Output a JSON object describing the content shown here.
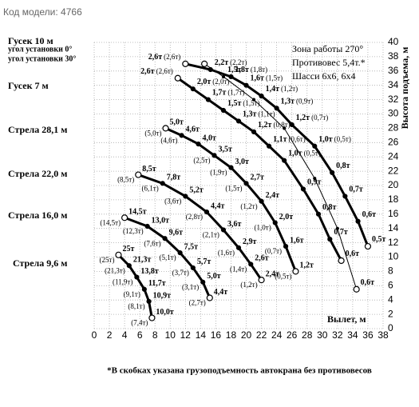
{
  "model_code": "Код модели: 4766",
  "chart_data": {
    "type": "line",
    "info": [
      "Зона работы 270°",
      "Противовес 5,4т.*",
      "Шасси 6х6, 6х4"
    ],
    "angle_labels": [
      "угол установки 0°",
      "угол установки 30°"
    ],
    "xlabel": "Вылет, м",
    "ylabel": "Высота подъема, м",
    "note": "*В скобках указана грузоподъемность автокрана без противовесов",
    "xlim": [
      0,
      38
    ],
    "ylim": [
      0,
      40
    ],
    "xticks": [
      0,
      2,
      4,
      6,
      8,
      10,
      12,
      14,
      16,
      18,
      20,
      22,
      24,
      26,
      28,
      30,
      32,
      34,
      36,
      38
    ],
    "yticks": [
      0,
      2,
      4,
      6,
      8,
      10,
      12,
      14,
      16,
      18,
      20,
      22,
      24,
      26,
      28,
      30,
      32,
      34,
      36,
      38,
      40
    ],
    "grid": true,
    "color": "#000000",
    "series": [
      {
        "name": "Гусек 10 м",
        "style": "thick",
        "x": [
          12,
          15.3,
          18,
          20,
          22,
          24,
          26,
          29,
          31.3,
          33,
          34.7,
          36
        ],
        "values": [
          37,
          36.2,
          35.2,
          34,
          32.5,
          30.8,
          28.5,
          25.5,
          21.8,
          18.5,
          15,
          11.5
        ],
        "loads": [
          "2,6т",
          "2,2т",
          "1,8т",
          "1,6т",
          "1,4т",
          "1,3т",
          "1,2т",
          "1,0т",
          "0,8т",
          "0,7т",
          "0,6т",
          "0,5т"
        ],
        "loads_alt": [
          "(2,6т)",
          "(2,2т)",
          "(1,8т)",
          "(1,5т)",
          "(1,2т)",
          "(0,9т)",
          "(0,7т)",
          "(0,5т)",
          null,
          null,
          null,
          null
        ]
      },
      {
        "name": "Гусек 7 м",
        "style": "thick",
        "x": [
          11,
          13,
          15,
          17,
          19,
          21,
          23,
          25,
          27.5,
          29.5,
          31,
          32.5
        ],
        "values": [
          35,
          33.5,
          32,
          30.5,
          29,
          27.5,
          25.5,
          23.5,
          19.5,
          16,
          12.5,
          9.5
        ],
        "loads": [
          "2,6т",
          "2,0т",
          "1,7т",
          "1,5т",
          "1,3т",
          "1,2т",
          "1,1т",
          "1,0т",
          "0,9т",
          "0,8т",
          "0,7т",
          "0,6т"
        ],
        "loads_alt": [
          "(2,6т)",
          "(2,0т)",
          "(1,7т)",
          "(1,5т)",
          "(1,1т)",
          "(0,8т)",
          "(0,6т)",
          "(0,5т)",
          null,
          null,
          null,
          null
        ]
      },
      {
        "name": null,
        "style": "thin",
        "x": [
          14.5,
          17,
          21,
          25,
          29,
          32,
          34.5
        ],
        "values": [
          37,
          35.2,
          32,
          28,
          21,
          14,
          5.5
        ],
        "loads": [
          null,
          "1,5т",
          null,
          null,
          null,
          null,
          "0,6т"
        ],
        "loads_alt": [
          null,
          null,
          null,
          null,
          null,
          null,
          null
        ]
      },
      {
        "name": "Стрела 28,1 м",
        "style": "thick",
        "x": [
          9.4,
          11.5,
          13.7,
          15.8,
          18,
          20,
          22,
          23.8,
          25.2,
          26.5
        ],
        "values": [
          28,
          27,
          25.8,
          24.2,
          22.5,
          20.3,
          17.8,
          14.8,
          11.5,
          8
        ],
        "loads": [
          "5,0т",
          "4,6т",
          "4,0т",
          "3,5т",
          "3,0т",
          "2,7т",
          "2,4т",
          "2,0т",
          "1,6т",
          "1,2т"
        ],
        "loads_alt": [
          "(5,0т)",
          "(4,6т)",
          null,
          "(2,5т)",
          "(1,9т)",
          "(1,5т)",
          "(1,2т)",
          "(1,0т)",
          "(0,7т)",
          "(0,5т)"
        ]
      },
      {
        "name": "Стрела 22,0 м",
        "style": "thick",
        "x": [
          5.8,
          9,
          12,
          14.8,
          17,
          19,
          20.6,
          22
        ],
        "values": [
          21.5,
          20.3,
          18.5,
          16.3,
          13.8,
          11.3,
          9,
          6.8
        ],
        "loads": [
          "8,5т",
          "7,8т",
          "5,2т",
          "4,4т",
          "3,6т",
          "2,9т",
          "2,6т",
          "2,4т"
        ],
        "loads_alt": [
          "(8,5т)",
          "(6,1т)",
          "(3,6т)",
          "(2,8т)",
          "(2,1т)",
          "(1,6т)",
          "(1,4т)",
          "(1,2т)"
        ]
      },
      {
        "name": "Стрела 16,0 м",
        "style": "thick",
        "x": [
          4,
          7,
          9.3,
          11.3,
          13,
          14.3,
          15.2
        ],
        "values": [
          15.5,
          14.3,
          12.6,
          10.6,
          8.5,
          6.5,
          4.3
        ],
        "loads": [
          "14,5т",
          "13,0т",
          "9,6т",
          "7,5т",
          "5,7т",
          "5,0т",
          "4,4т"
        ],
        "loads_alt": [
          "(14,5т)",
          "(12,3т)",
          "(7,6т)",
          "(5,1т)",
          "(3,7т)",
          "(3,1т)",
          "(2,7т)"
        ]
      },
      {
        "name": "Стрела 9,6 м",
        "style": "thick",
        "x": [
          3.2,
          4.6,
          5.6,
          6.6,
          7.2,
          7.6
        ],
        "values": [
          10.3,
          8.8,
          7.2,
          5.5,
          3.8,
          1.5
        ],
        "loads": [
          "25т",
          "21,3т",
          "13,8т",
          "11,7т",
          "10,9т",
          "10,0т"
        ],
        "loads_alt": [
          "(25т)",
          "(21,3т)",
          "(11,9т)",
          "(9,1т)",
          "(8,1т)",
          "(7,4т)"
        ]
      }
    ]
  }
}
